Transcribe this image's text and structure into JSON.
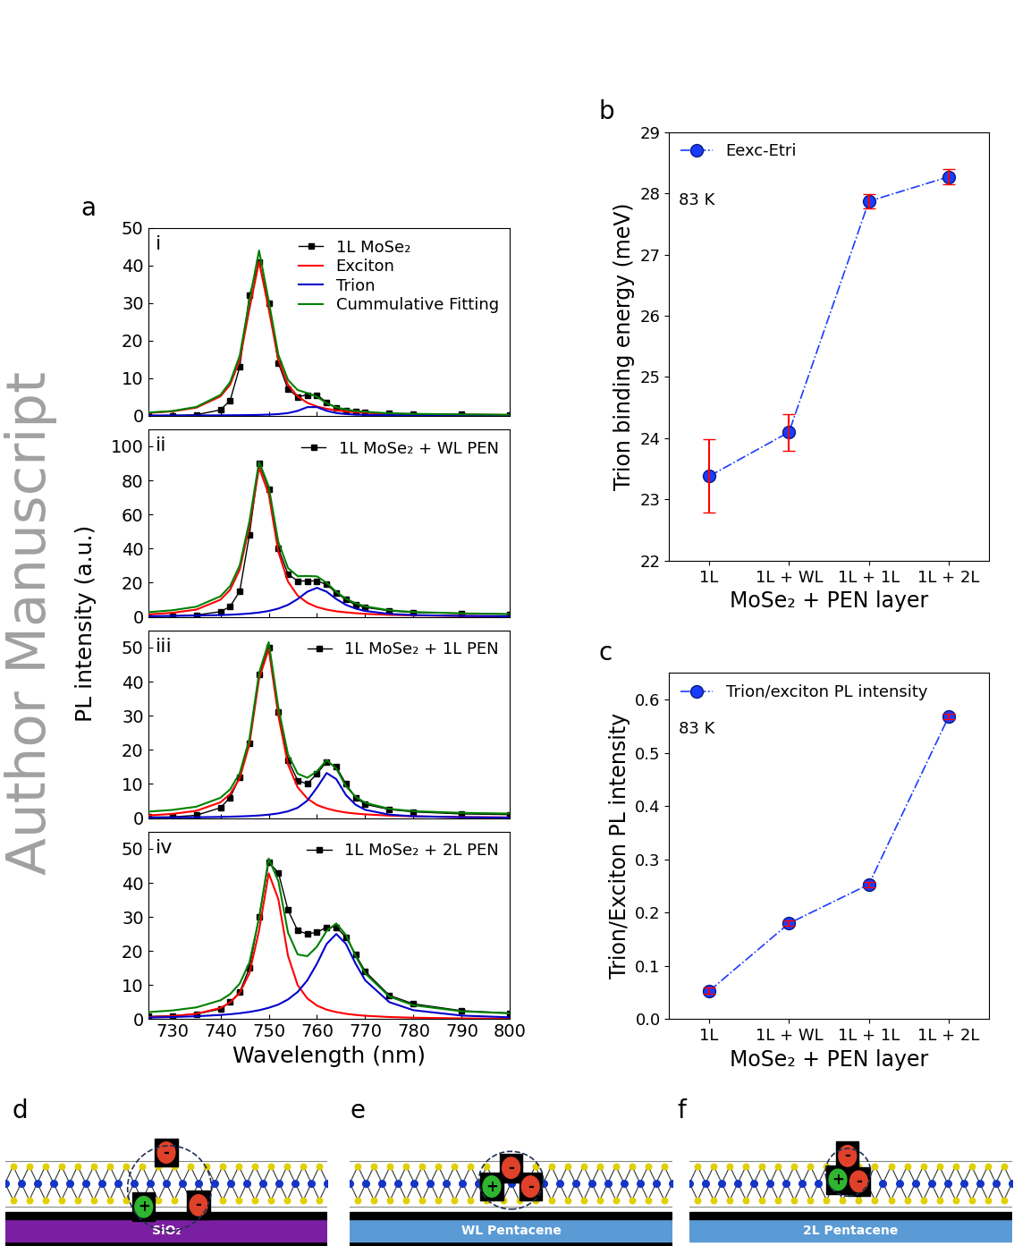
{
  "watermark": "Author Manuscript",
  "panel_labels": [
    "a",
    "b",
    "c",
    "d",
    "e",
    "f"
  ],
  "shared_ylabel": "PL intensity (a.u.)",
  "chart_data": [
    {
      "type": "line",
      "title": "i",
      "legend": "upper right",
      "tick_labels": "y",
      "x": [
        725,
        730,
        735,
        740,
        742,
        744,
        746,
        748,
        750,
        752,
        754,
        756,
        758,
        760,
        762,
        764,
        766,
        768,
        770,
        775,
        780,
        790,
        800
      ],
      "xlim": [
        725,
        800
      ],
      "xticks": [
        730,
        740,
        750,
        760,
        770,
        780,
        790,
        800
      ],
      "ylim": [
        0,
        50
      ],
      "yticks": [
        0,
        10,
        20,
        30,
        40,
        50
      ],
      "series": [
        {
          "name": "1L MoSe₂",
          "color": "#000000",
          "marker": "square",
          "line_style": "solid",
          "values": [
            0,
            0,
            0.2,
            1.5,
            4,
            13,
            32,
            41,
            30,
            14,
            7,
            5,
            5.5,
            5.5,
            3.5,
            2,
            1.3,
            1,
            0.8,
            0.5,
            0.4,
            0.3,
            0.2
          ]
        },
        {
          "name": "Exciton",
          "color": "#ff0000",
          "line_style": "solid",
          "values": [
            0.7,
            1.1,
            2.1,
            5.1,
            8.2,
            14.8,
            28.4,
            41,
            28.4,
            14.8,
            8.2,
            5.1,
            3.4,
            2.4,
            1.8,
            1.4,
            1.1,
            0.9,
            0.75,
            0.5,
            0.36,
            0.23,
            0.14
          ]
        },
        {
          "name": "Trion",
          "color": "#0000cc",
          "line_style": "solid",
          "values": [
            0.02,
            0.03,
            0.04,
            0.06,
            0.08,
            0.1,
            0.13,
            0.17,
            0.25,
            0.39,
            0.66,
            1.25,
            2.25,
            2.25,
            1.25,
            0.66,
            0.39,
            0.25,
            0.17,
            0.09,
            0.05,
            0.03,
            0.02
          ]
        },
        {
          "name": "Cummulative Fitting",
          "color": "#008000",
          "line_style": "solid",
          "values": [
            0.8,
            1.2,
            2.3,
            5.5,
            8.9,
            16,
            30.5,
            44,
            30.6,
            16.2,
            9.5,
            6.8,
            6,
            5,
            3.3,
            2.2,
            1.6,
            1.2,
            1,
            0.6,
            0.45,
            0.3,
            0.2
          ]
        }
      ]
    },
    {
      "type": "line",
      "title": "ii",
      "legend": "upper right",
      "tick_labels": "y",
      "x": [
        725,
        730,
        735,
        740,
        742,
        744,
        746,
        748,
        750,
        752,
        754,
        756,
        758,
        760,
        762,
        764,
        766,
        768,
        770,
        775,
        780,
        790,
        800
      ],
      "xlim": [
        725,
        800
      ],
      "xticks": [
        730,
        740,
        750,
        760,
        770,
        780,
        790,
        800
      ],
      "ylim": [
        0,
        110
      ],
      "yticks": [
        0,
        20,
        40,
        60,
        80,
        100
      ],
      "series": [
        {
          "name": "1L MoSe₂ + WL PEN",
          "color": "#000000",
          "marker": "square",
          "line_style": "solid",
          "values": [
            0.5,
            0.5,
            1,
            3,
            6,
            15,
            48,
            90,
            75,
            40,
            25,
            21,
            21,
            21,
            19,
            14,
            10,
            7,
            5.5,
            3.5,
            2.5,
            2,
            1.5
          ]
        },
        {
          "color": "#ff0000",
          "line_style": "solid",
          "values": [
            1.4,
            2.3,
            4.2,
            10,
            15.8,
            27.7,
            53,
            87.5,
            72,
            38,
            20.6,
            12.4,
            8.2,
            5.7,
            4.2,
            3.2,
            2.6,
            2.1,
            1.7,
            1.1,
            0.8,
            0.5,
            0.3
          ]
        },
        {
          "color": "#0000cc",
          "line_style": "solid",
          "values": [
            0.3,
            0.5,
            0.7,
            1,
            1.2,
            1.5,
            1.9,
            2.5,
            3.4,
            4.8,
            7,
            10.4,
            14.7,
            17,
            14.7,
            10.4,
            7,
            4.8,
            3.4,
            1.7,
            1,
            0.5,
            0.3
          ]
        },
        {
          "color": "#008000",
          "line_style": "solid",
          "values": [
            2.7,
            3.8,
            5.9,
            12,
            18,
            30.2,
            55.9,
            91,
            76.4,
            43.8,
            28.6,
            23.8,
            23.9,
            23.7,
            19.9,
            14.6,
            10.6,
            7.9,
            6.1,
            3.8,
            2.8,
            2,
            1.6
          ]
        }
      ]
    },
    {
      "type": "line",
      "title": "iii",
      "legend": "upper right",
      "tick_labels": "y",
      "x": [
        725,
        730,
        735,
        740,
        742,
        744,
        746,
        748,
        750,
        752,
        754,
        756,
        758,
        760,
        762,
        764,
        766,
        768,
        770,
        775,
        780,
        790,
        800
      ],
      "xlim": [
        725,
        800
      ],
      "xticks": [
        730,
        740,
        750,
        760,
        770,
        780,
        790,
        800
      ],
      "ylim": [
        0,
        55
      ],
      "yticks": [
        0,
        10,
        20,
        30,
        40,
        50
      ],
      "series": [
        {
          "name": "1L MoSe₂ + 1L PEN",
          "color": "#000000",
          "marker": "square",
          "line_style": "solid",
          "values": [
            0.3,
            0.3,
            0.8,
            3,
            6,
            12,
            22,
            42,
            50,
            31,
            17,
            11,
            10,
            13,
            16.5,
            15,
            10,
            6,
            4,
            2.5,
            1.8,
            1.2,
            1
          ]
        },
        {
          "color": "#ff0000",
          "line_style": "solid",
          "values": [
            0.75,
            1.2,
            2.1,
            4.6,
            7,
            11.7,
            21.6,
            40.8,
            49.6,
            30,
            15.7,
            9,
            5.7,
            3.8,
            2.8,
            2.1,
            1.6,
            1.3,
            1.07,
            0.7,
            0.49,
            0.28,
            0.18
          ]
        },
        {
          "color": "#0000cc",
          "line_style": "solid",
          "values": [
            0.12,
            0.16,
            0.22,
            0.32,
            0.39,
            0.47,
            0.58,
            0.74,
            0.98,
            1.35,
            1.96,
            3,
            5.1,
            8.9,
            13.2,
            11.4,
            6.75,
            3.9,
            2.4,
            0.98,
            0.52,
            0.22,
            0.12
          ]
        },
        {
          "color": "#008000",
          "line_style": "solid",
          "values": [
            1.87,
            2.36,
            3.32,
            5.92,
            8.39,
            13.17,
            23.18,
            42.54,
            51.58,
            32.35,
            18.66,
            13,
            11.8,
            13.7,
            17,
            14.5,
            9.35,
            6.2,
            4.47,
            2.68,
            2.01,
            1.5,
            1.3
          ]
        }
      ]
    },
    {
      "type": "line",
      "title": "iv",
      "legend": "upper right",
      "xlabel": "Wavelength (nm)",
      "x": [
        725,
        730,
        735,
        740,
        742,
        744,
        746,
        748,
        750,
        752,
        754,
        756,
        758,
        760,
        762,
        764,
        766,
        768,
        770,
        775,
        780,
        790,
        800
      ],
      "xlim": [
        725,
        800
      ],
      "xticks": [
        730,
        740,
        750,
        760,
        770,
        780,
        790,
        800
      ],
      "ylim": [
        0,
        55
      ],
      "yticks": [
        0,
        10,
        20,
        30,
        40,
        50
      ],
      "series": [
        {
          "name": "1L MoSe₂ + 2L PEN",
          "color": "#000000",
          "marker": "square",
          "line_style": "solid",
          "values": [
            0.8,
            1,
            1.5,
            3,
            5,
            8,
            15,
            30,
            46,
            43,
            32,
            26,
            25,
            25.5,
            27,
            27,
            24,
            19,
            14,
            7,
            4.5,
            2.5,
            1.8
          ]
        },
        {
          "color": "#ff0000",
          "line_style": "solid",
          "values": [
            0.6,
            0.92,
            1.6,
            3.3,
            4.9,
            7.7,
            13.5,
            26,
            42.8,
            35.2,
            18.6,
            10,
            6.1,
            4,
            2.8,
            2.1,
            1.6,
            1.26,
            1.02,
            0.65,
            0.45,
            0.25,
            0.16
          ]
        },
        {
          "color": "#0000cc",
          "line_style": "solid",
          "values": [
            0.49,
            0.64,
            0.87,
            1.25,
            1.47,
            1.76,
            2.14,
            2.64,
            3.35,
            4.3,
            5.8,
            8,
            11.4,
            16.3,
            22.1,
            25,
            22.1,
            16.3,
            11.4,
            5,
            2.64,
            1.07,
            0.56
          ]
        },
        {
          "color": "#008000",
          "line_style": "solid",
          "values": [
            2.09,
            2.56,
            3.47,
            5.55,
            7.37,
            10.46,
            16.64,
            29.64,
            47.15,
            40.5,
            25.4,
            19,
            18.5,
            21.3,
            25.9,
            28.1,
            24.7,
            18.56,
            13.42,
            6.65,
            4.09,
            2.32,
            1.72
          ]
        }
      ]
    },
    {
      "type": "scatter",
      "legend": "upper left",
      "annotation": "83 K",
      "xlabel": "MoSe₂ + PEN layer",
      "ylabel": "Trion binding energy (meV)",
      "categories": [
        "1L",
        "1L + WL",
        "1L + 1L",
        "1L + 2L"
      ],
      "ylim": [
        22,
        29
      ],
      "yticks": [
        22,
        23,
        24,
        25,
        26,
        27,
        28,
        29
      ],
      "series": [
        {
          "name": "Eexc-Etri",
          "color": "#1a3cff",
          "marker": "circle",
          "line_style": "dashdot",
          "values": [
            23.38,
            24.1,
            27.87,
            28.27
          ],
          "errors": [
            0.6,
            0.3,
            0.12,
            0.12
          ]
        }
      ]
    },
    {
      "type": "scatter",
      "legend": "upper left",
      "annotation": "83 K",
      "xlabel": "MoSe₂ + PEN layer",
      "ylabel": "Trion/Exciton PL intensity",
      "categories": [
        "1L",
        "1L + WL",
        "1L + 1L",
        "1L + 2L"
      ],
      "ylim": [
        0.0,
        0.65
      ],
      "yticks": [
        0.0,
        0.1,
        0.2,
        0.3,
        0.4,
        0.5,
        0.6
      ],
      "series": [
        {
          "name": "Trion/exciton PL intensity",
          "color": "#1a3cff",
          "marker": "circle",
          "line_style": "dashdot",
          "values": [
            0.053,
            0.18,
            0.253,
            0.568
          ],
          "errors": [
            0.006,
            0.005,
            0.005,
            0.005
          ]
        }
      ]
    }
  ],
  "diagrams": [
    {
      "substrate": "SiO₂",
      "charges": [
        "-",
        "+",
        "-"
      ]
    },
    {
      "substrate": "WL Pentacene",
      "charges": [
        "-",
        "+",
        "-"
      ]
    },
    {
      "substrate": "2L Pentacene",
      "charges": [
        "-",
        "+",
        "-"
      ]
    }
  ]
}
